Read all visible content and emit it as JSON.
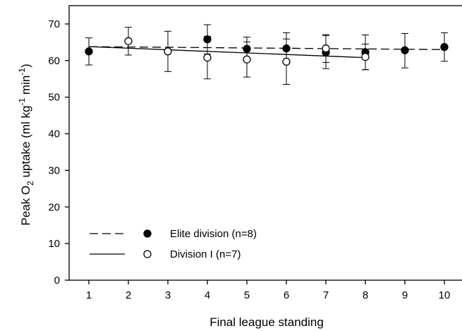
{
  "chart_data": {
    "type": "scatter",
    "title": "",
    "xlabel": "Final league standing",
    "ylabel": {
      "prefix": "Peak O",
      "subscript": "2",
      "middle": " uptake (ml kg",
      "superscript": "-1",
      "middle2": " min",
      "superscript2": "-1",
      "suffix": ")"
    },
    "xlim": [
      0.5,
      10.5
    ],
    "ylim": [
      0,
      75
    ],
    "x_ticks": [
      "1",
      "2",
      "3",
      "4",
      "5",
      "6",
      "7",
      "8",
      "9",
      "10"
    ],
    "y_ticks": [
      "0",
      "10",
      "20",
      "30",
      "40",
      "50",
      "60",
      "70"
    ],
    "grid": false,
    "legend_position": "bottom-left",
    "series": [
      {
        "name": "Elite division (n=8)",
        "marker": "filled-circle",
        "line_style": "dashed",
        "points": [
          {
            "x": 1,
            "y": 62.5,
            "err_low": 58.8,
            "err_high": 66.2
          },
          {
            "x": 4,
            "y": 65.8,
            "err_low": 61.8,
            "err_high": 69.8
          },
          {
            "x": 5,
            "y": 63.2,
            "err_low": 60.0,
            "err_high": 66.4
          },
          {
            "x": 6,
            "y": 63.3,
            "err_low": 59.2,
            "err_high": 67.6
          },
          {
            "x": 7,
            "y": 62.2,
            "err_low": 57.8,
            "err_high": 66.8
          },
          {
            "x": 8,
            "y": 62.3,
            "err_low": 57.5,
            "err_high": 67.0
          },
          {
            "x": 9,
            "y": 62.8,
            "err_low": 58.0,
            "err_high": 67.4
          },
          {
            "x": 10,
            "y": 63.7,
            "err_low": 59.8,
            "err_high": 67.6
          }
        ],
        "trend": {
          "x": [
            1,
            10
          ],
          "y": [
            63.8,
            63.0
          ]
        }
      },
      {
        "name": "Division I (n=7)",
        "marker": "open-circle",
        "line_style": "solid",
        "points": [
          {
            "x": 2,
            "y": 65.3,
            "err_low": 61.5,
            "err_high": 69.1
          },
          {
            "x": 3,
            "y": 62.5,
            "err_low": 57.0,
            "err_high": 68.0
          },
          {
            "x": 4,
            "y": 60.8,
            "err_low": 55.0,
            "err_high": 66.6
          },
          {
            "x": 5,
            "y": 60.3,
            "err_low": 55.5,
            "err_high": 65.1
          },
          {
            "x": 6,
            "y": 59.7,
            "err_low": 53.5,
            "err_high": 65.9
          },
          {
            "x": 7,
            "y": 63.3,
            "err_low": 59.5,
            "err_high": 67.1
          },
          {
            "x": 8,
            "y": 61.0,
            "err_low": 57.5,
            "err_high": 64.5
          }
        ],
        "trend": {
          "x": [
            1,
            8
          ],
          "y": [
            63.8,
            60.8
          ]
        }
      }
    ]
  }
}
